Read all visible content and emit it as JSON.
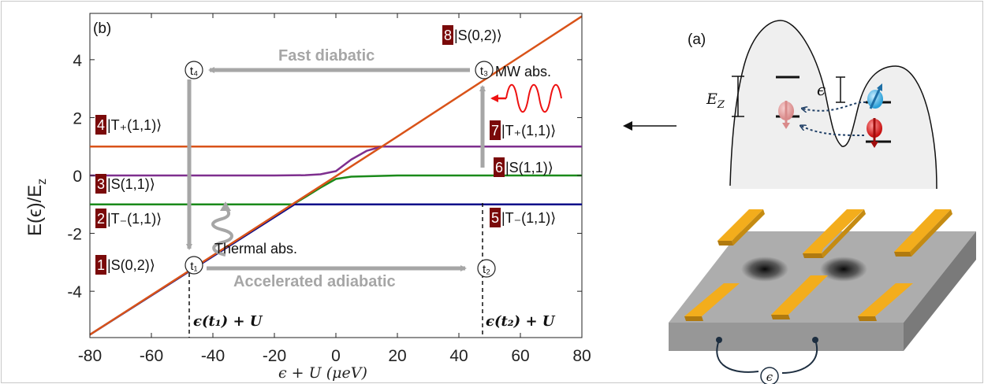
{
  "panel_b": {
    "label": "(b)",
    "ylabel": "E(ϵ)/E",
    "ylabel_sub": "z",
    "xlabel_pre": "ϵ + U (",
    "xlabel_unit": "μeV",
    "xlabel_post": ")",
    "fast_label": "Fast diabatic",
    "accel_label": "Accelerated adiabatic",
    "mw_label": "MW abs.",
    "thermal_label": "Thermal abs.",
    "t1": "t₁",
    "t2": "t₂",
    "t3": "t₃",
    "t4": "t₄",
    "eps_t1": "ϵ(t₁) + U",
    "eps_t2": "ϵ(t₂) + U",
    "states": [
      {
        "num": "1",
        "text": "|S(0,2)⟩"
      },
      {
        "num": "2",
        "text": "|T₋(1,1)⟩"
      },
      {
        "num": "3",
        "text": "|S(1,1)⟩"
      },
      {
        "num": "4",
        "text": "|T₊(1,1)⟩"
      },
      {
        "num": "5",
        "text": "|T₋(1,1)⟩"
      },
      {
        "num": "6",
        "text": "|S(1,1)⟩"
      },
      {
        "num": "7",
        "text": "|T₊(1,1)⟩"
      },
      {
        "num": "8",
        "text": "|S(0,2)⟩"
      }
    ]
  },
  "panel_a": {
    "label": "(a)",
    "ez": "E",
    "ez_sub": "Z",
    "eps": "ϵ",
    "gate_eps": "ϵ"
  },
  "colors": {
    "orange": "#d95319",
    "purple": "#7e2f8e",
    "green": "#1a8a1a",
    "navy": "#0b0b8a",
    "badge": "#7a0a0a",
    "gray_arrow": "#a6a6a6",
    "gold": "#f3ad1c"
  },
  "chart_data": {
    "type": "line",
    "xlim": [
      -80,
      80
    ],
    "ylim": [
      -5.6,
      5.6
    ],
    "xticks": [
      -80,
      -60,
      -40,
      -20,
      0,
      20,
      40,
      60,
      80
    ],
    "yticks": [
      -4,
      -2,
      0,
      2,
      4
    ],
    "series": [
      {
        "x": [
          -80,
          80
        ],
        "y": [
          1,
          1
        ]
      },
      {
        "x": [
          -80,
          80
        ],
        "y": [
          -1,
          -1
        ]
      },
      {
        "x": [
          -80,
          -20,
          -10,
          -5,
          0,
          5,
          10,
          15,
          80
        ],
        "y": [
          0,
          0,
          0.01,
          0.04,
          0.15,
          0.55,
          0.85,
          1.0,
          1.0
        ]
      },
      {
        "x": [
          -80,
          -20,
          -14,
          -10,
          -5,
          0,
          5,
          20,
          80
        ],
        "y": [
          -1,
          -1,
          -1,
          -0.75,
          -0.42,
          -0.12,
          -0.04,
          0,
          0
        ]
      },
      {
        "x": [
          -80,
          -13.5,
          80
        ],
        "y": [
          -5.5,
          -1,
          -1
        ]
      },
      {
        "x": [
          -80,
          15,
          80
        ],
        "y": [
          -5.5,
          1,
          5.5
        ]
      }
    ]
  }
}
